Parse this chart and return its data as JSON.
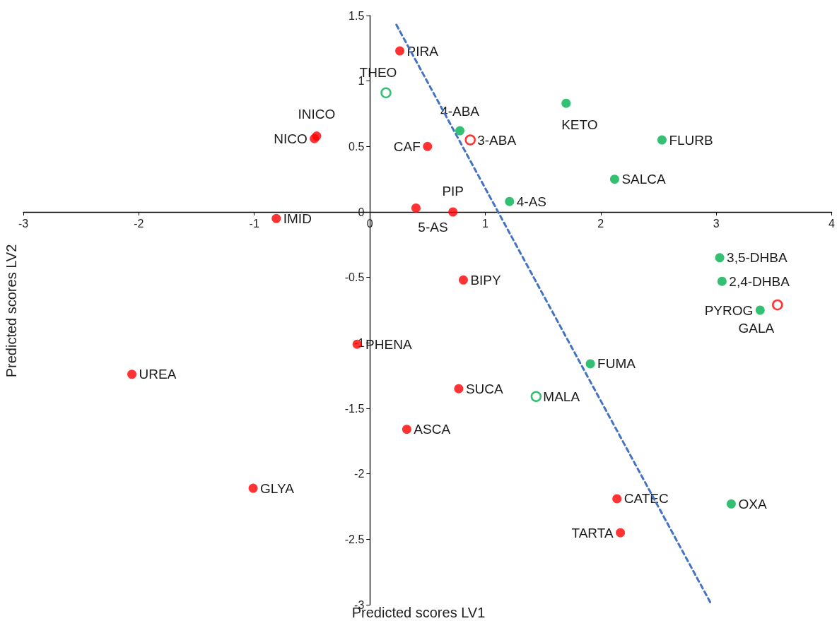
{
  "chart_data": {
    "type": "scatter",
    "xlabel": "Predicted scores LV1",
    "ylabel": "Predicted scores LV2",
    "xlim": [
      -3,
      4
    ],
    "xticks": [
      -3,
      -2,
      -1,
      0,
      1,
      2,
      3,
      4
    ],
    "ylim": [
      -3,
      1.5
    ],
    "yticks": [
      -3,
      -2.5,
      -2,
      -1.5,
      -1,
      -0.5,
      0,
      0.5,
      1,
      1.5
    ],
    "grid": false,
    "marker": "circle",
    "series": [
      {
        "color": "#ff0000",
        "x": [
          0.26,
          -0.46,
          -0.48,
          0.5,
          0.4,
          0.72,
          -0.81,
          0.81,
          -0.11,
          -2.06,
          0.77,
          0.32,
          -1.01,
          2.14,
          2.17
        ],
        "values": [
          1.23,
          0.58,
          0.56,
          0.5,
          0.03,
          0.0,
          -0.05,
          -0.52,
          -1.01,
          -1.24,
          -1.35,
          -1.66,
          -2.11,
          -2.19,
          -2.45
        ]
      },
      {
        "color": "#ff0000",
        "x": [
          0.87,
          3.53
        ],
        "values": [
          0.55,
          -0.71
        ]
      },
      {
        "color": "#00b050",
        "x": [
          0.78,
          1.7,
          2.53,
          2.12,
          1.21,
          3.03,
          3.05,
          3.38,
          1.91,
          3.13
        ],
        "values": [
          0.62,
          0.83,
          0.55,
          0.25,
          0.08,
          -0.35,
          -0.53,
          -0.75,
          -1.16,
          -2.23
        ]
      },
      {
        "color": "#00b050",
        "x": [
          0.14,
          1.44
        ],
        "values": [
          0.91,
          -1.41
        ]
      },
      {
        "type": "line",
        "color": "#4472c4",
        "marker": "none",
        "line_style": "dashed",
        "x": [
          0.23,
          2.96
        ],
        "values": [
          1.43,
          -3.0
        ]
      }
    ],
    "annotations": [
      {
        "text": "PIRA",
        "x": 0.26,
        "y": 1.23
      },
      {
        "text": "INICO",
        "x": -0.46,
        "y": 0.58
      },
      {
        "text": "NICO",
        "x": -0.48,
        "y": 0.56
      },
      {
        "text": "CAF",
        "x": 0.5,
        "y": 0.5
      },
      {
        "text": "5-AS",
        "x": 0.4,
        "y": 0.03
      },
      {
        "text": "PIP",
        "x": 0.72,
        "y": 0.0
      },
      {
        "text": "IMID",
        "x": -0.81,
        "y": -0.05
      },
      {
        "text": "BIPY",
        "x": 0.81,
        "y": -0.52
      },
      {
        "text": "PHENA",
        "x": -0.11,
        "y": -1.01
      },
      {
        "text": "UREA",
        "x": -2.06,
        "y": -1.24
      },
      {
        "text": "SUCA",
        "x": 0.77,
        "y": -1.35
      },
      {
        "text": "ASCA",
        "x": 0.32,
        "y": -1.66
      },
      {
        "text": "GLYA",
        "x": -1.01,
        "y": -2.11
      },
      {
        "text": "CATEC",
        "x": 2.14,
        "y": -2.19
      },
      {
        "text": "TARTA",
        "x": 2.17,
        "y": -2.45
      },
      {
        "text": "3-ABA",
        "x": 0.87,
        "y": 0.55
      },
      {
        "text": "GALA",
        "x": 3.53,
        "y": -0.71
      },
      {
        "text": "4-ABA",
        "x": 0.78,
        "y": 0.62
      },
      {
        "text": "KETO",
        "x": 1.7,
        "y": 0.83
      },
      {
        "text": "FLURB",
        "x": 2.53,
        "y": 0.55
      },
      {
        "text": "SALCA",
        "x": 2.12,
        "y": 0.25
      },
      {
        "text": "4-AS",
        "x": 1.21,
        "y": 0.08
      },
      {
        "text": "3,5-DHBA",
        "x": 3.03,
        "y": -0.35
      },
      {
        "text": "2,4-DHBA",
        "x": 3.05,
        "y": -0.53
      },
      {
        "text": "PYROG",
        "x": 3.38,
        "y": -0.75
      },
      {
        "text": "FUMA",
        "x": 1.91,
        "y": -1.16
      },
      {
        "text": "OXA",
        "x": 3.13,
        "y": -2.23
      },
      {
        "text": "THEO",
        "x": 0.14,
        "y": 0.91
      },
      {
        "text": "MALA",
        "x": 1.44,
        "y": -1.41
      }
    ]
  }
}
